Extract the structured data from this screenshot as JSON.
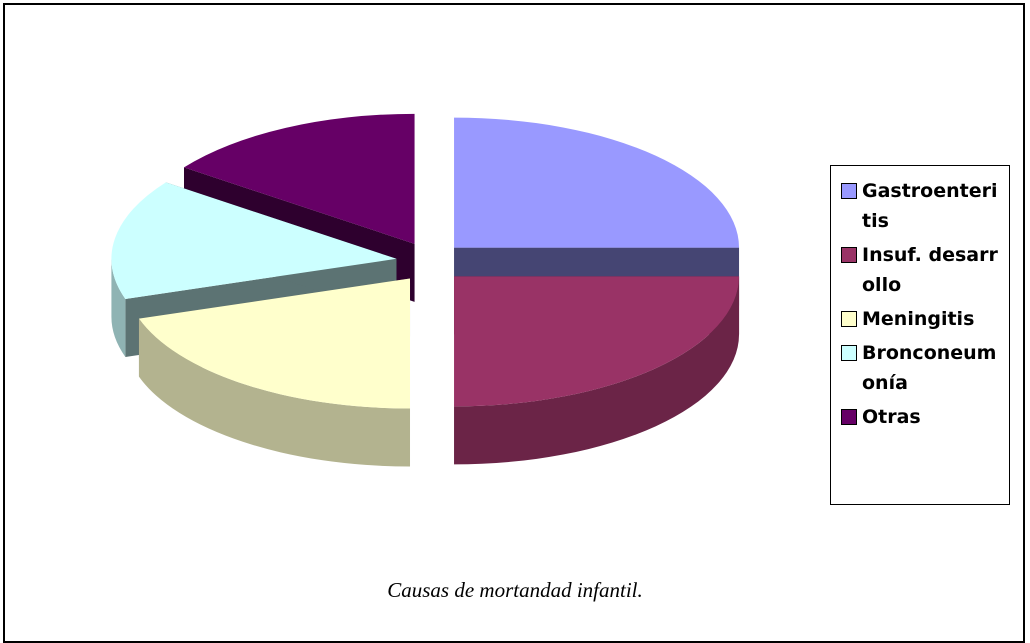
{
  "chart_data": {
    "type": "pie",
    "title": "Causas de mortandad infantil.",
    "categories": [
      "Gastroenteritis",
      "Insuf. desarrollo",
      "Meningitis",
      "Bronconeumonía",
      "Otras"
    ],
    "values": [
      25,
      25,
      20,
      15,
      15
    ],
    "colors": [
      "#9999ff",
      "#993366",
      "#ffffcc",
      "#ccffff",
      "#660066"
    ],
    "legend": "right"
  }
}
